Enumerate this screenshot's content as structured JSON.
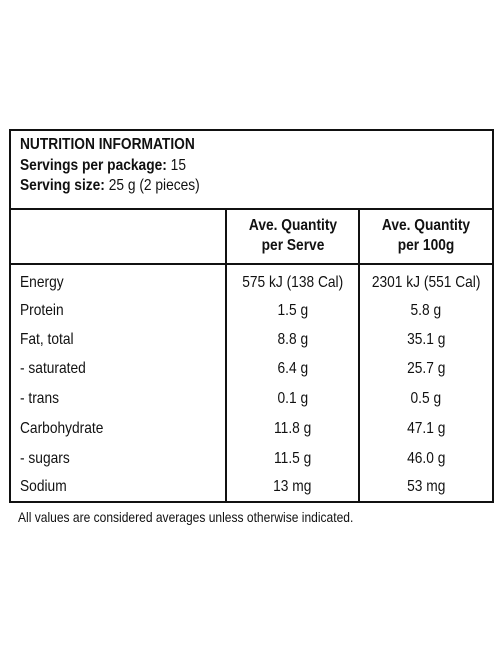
{
  "panel": {
    "title": "NUTRITION INFORMATION",
    "servings_label": "Servings per package:",
    "servings_value": "15",
    "serving_size_label": "Serving size:",
    "serving_size_value": "25 g (2 pieces)"
  },
  "columns": {
    "per_serve": "Ave. Quantity per Serve",
    "per_100g": "Ave. Quantity per 100g"
  },
  "rows": [
    {
      "name": "Energy",
      "per_serve": "575 kJ (138 Cal)",
      "per_100g": "2301 kJ (551 Cal)"
    },
    {
      "name": "Protein",
      "per_serve": "1.5 g",
      "per_100g": "5.8 g"
    },
    {
      "name": "Fat, total",
      "per_serve": "8.8 g",
      "per_100g": "35.1 g"
    },
    {
      "name": "- saturated",
      "per_serve": "6.4 g",
      "per_100g": "25.7 g"
    },
    {
      "name": "- trans",
      "per_serve": "0.1 g",
      "per_100g": "0.5 g"
    },
    {
      "name": "Carbohydrate",
      "per_serve": "11.8 g",
      "per_100g": "47.1 g"
    },
    {
      "name": "- sugars",
      "per_serve": "11.5 g",
      "per_100g": "46.0 g"
    },
    {
      "name": "Sodium",
      "per_serve": "13 mg",
      "per_100g": "53 mg"
    }
  ],
  "footnote": "All values are considered averages unless otherwise indicated."
}
